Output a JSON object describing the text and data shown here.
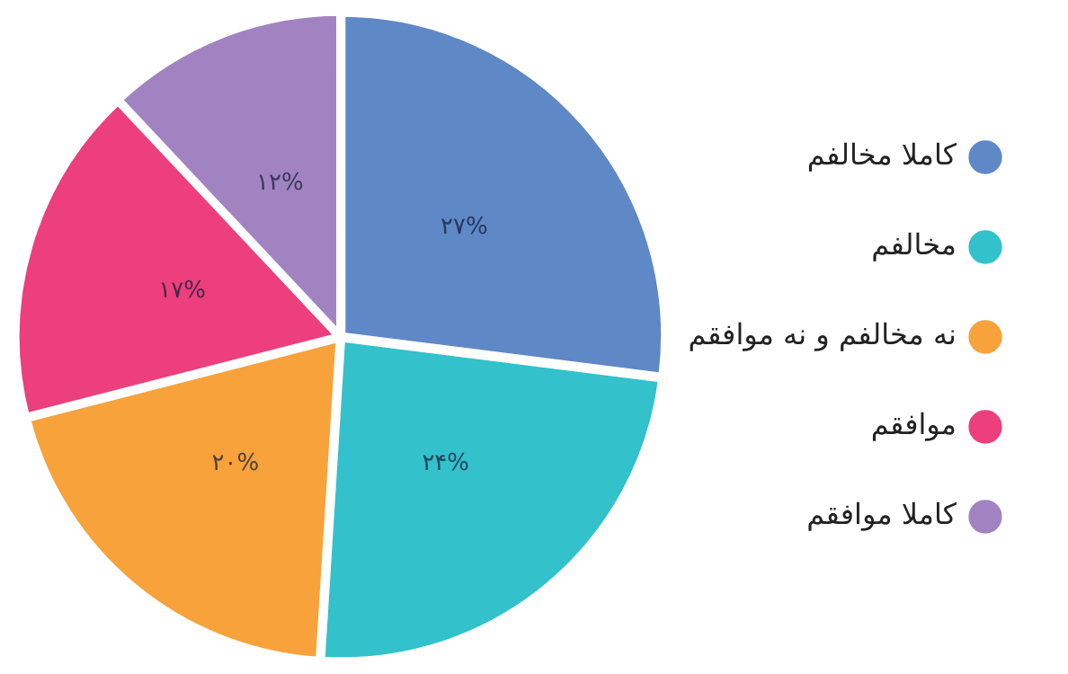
{
  "chart_data": {
    "type": "pie",
    "categories": [
      "کاملا مخالفم",
      "مخالفم",
      "نه مخالفم و نه موافقم",
      "موافقم",
      "کاملا موافقم"
    ],
    "values": [
      27,
      24,
      20,
      17,
      12
    ],
    "colors": [
      "#5e88c6",
      "#33c1cb",
      "#f7a23a",
      "#ec3f7b",
      "#a283c2"
    ],
    "value_labels": [
      "۲۷%",
      "۲۴%",
      "۲۰%",
      "۱۷%",
      "۱۲%"
    ],
    "legend": "right"
  }
}
